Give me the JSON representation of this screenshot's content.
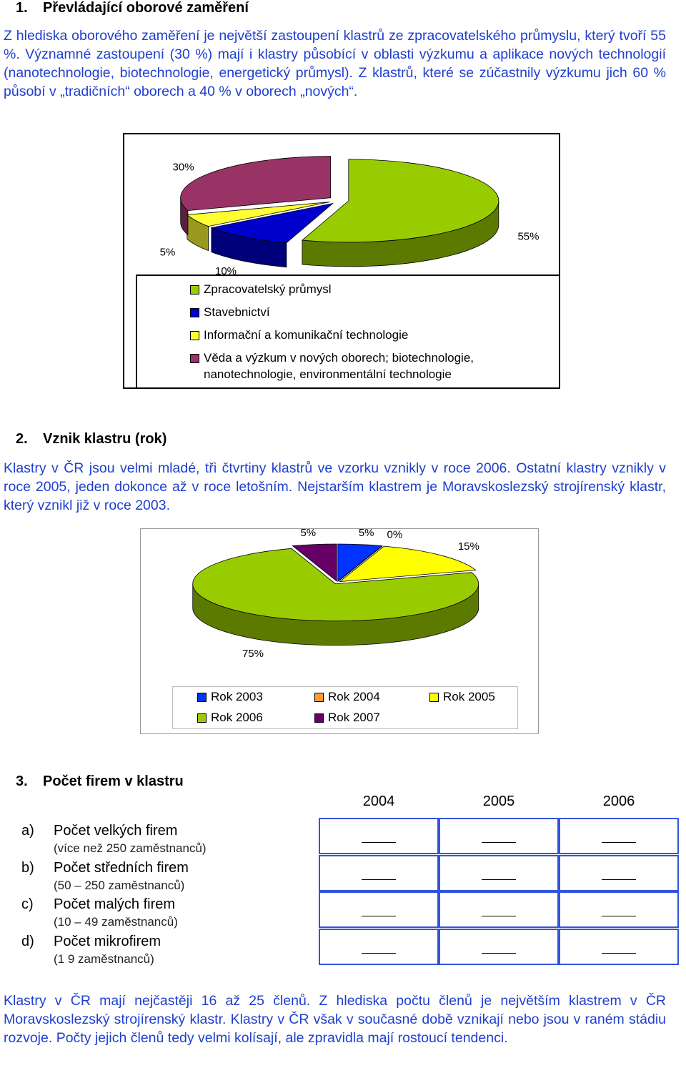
{
  "sections": [
    {
      "number": "1.",
      "title": "Převládající oborové zaměření",
      "paragraph": "Z hlediska oborového zaměření je největší zastoupení klastrů ze zpracovatelského průmyslu, který tvoří 55 %. Významné zastoupení (30 %) mají i klastry působící v oblasti výzkumu a aplikace nových technologií (nanotechnologie, biotechnologie, energetický průmysl). Z klastrů, které se zúčastnily výzkumu jich 60 % působí v „tradičních“ oborech a 40 % v oborech „nových“."
    },
    {
      "number": "2.",
      "title": "Vznik klastru (rok)",
      "paragraph": "Klastry v ČR jsou velmi mladé, tři čtvrtiny klastrů ve vzorku vznikly v roce 2006. Ostatní klastry vznikly v roce 2005, jeden dokonce až v roce letošním. Nejstarším klastrem je Moravskoslezský strojírenský klastr, který vznikl již v roce 2003."
    },
    {
      "number": "3.",
      "title": "Počet firem v klastru"
    }
  ],
  "chart_data": [
    {
      "type": "pie",
      "categories": [
        "Zpracovatelský průmysl",
        "Stavebnictví",
        "Informační a komunikační technologie",
        "Věda a výzkum v nových oborech; biotechnologie, nanotechnologie, environmentální technologie"
      ],
      "values": [
        55,
        10,
        5,
        30
      ],
      "value_labels": [
        "55%",
        "10%",
        "5%",
        "30%"
      ],
      "colors": [
        "#99cc00",
        "#0000cc",
        "#ffff33",
        "#993366"
      ]
    },
    {
      "type": "pie",
      "categories": [
        "Rok 2003",
        "Rok 2004",
        "Rok 2005",
        "Rok 2006",
        "Rok 2007"
      ],
      "values": [
        5,
        0,
        15,
        75,
        5
      ],
      "value_labels": [
        "5%",
        "0%",
        "15%",
        "75%",
        "5%"
      ],
      "colors": [
        "#0033ff",
        "#ff9933",
        "#ffff00",
        "#99cc00",
        "#660066"
      ]
    }
  ],
  "table": {
    "columns": [
      "2004",
      "2005",
      "2006"
    ],
    "rows": [
      {
        "marker": "a)",
        "label": "Počet velkých firem",
        "note": "(více než 250 zaměstnanců)"
      },
      {
        "marker": "b)",
        "label": "Počet středních firem",
        "note": "(50 – 250 zaměstnanců)"
      },
      {
        "marker": "c)",
        "label": "Počet malých firem",
        "note": "(10 – 49 zaměstnanců)"
      },
      {
        "marker": "d)",
        "label": "Počet mikrofirem",
        "note": "(1 9 zaměstnanců)"
      }
    ]
  },
  "closing_paragraph": "Klastry v ČR mají nejčastěji 16 až 25 členů. Z hlediska počtu členů je největším klastrem v ČR Moravskoslezský strojírenský klastr. Klastry v ČR však v současné době vznikají nebo jsou v raném stádiu rozvoje. Počty jejich členů tedy velmi kolísají, ale zpravidla mají rostoucí tendenci."
}
